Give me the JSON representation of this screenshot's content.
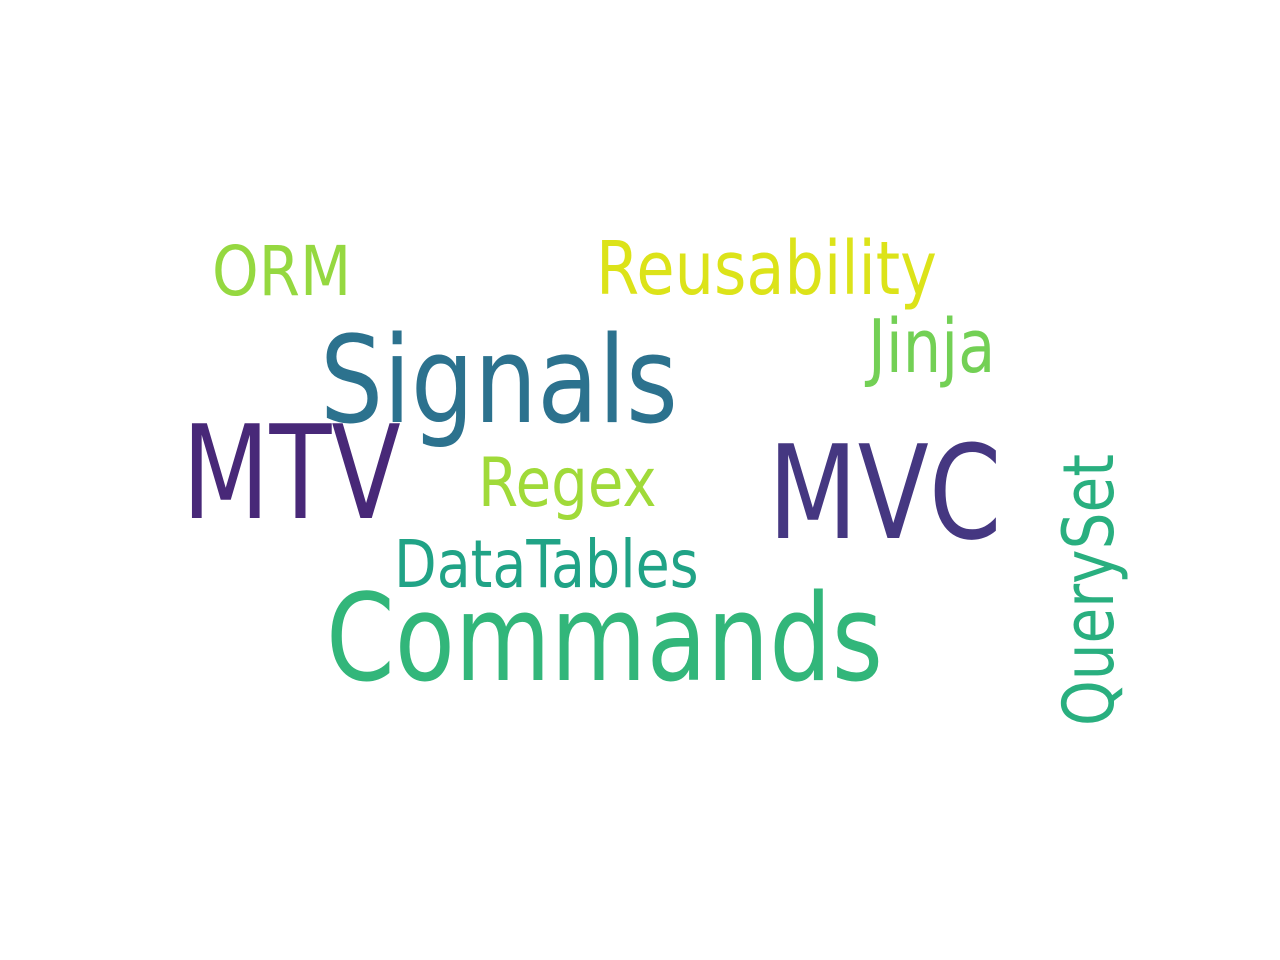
{
  "words": {
    "orm": {
      "text": "ORM",
      "color": "#95d840"
    },
    "reusability": {
      "text": "Reusability",
      "color": "#dce319"
    },
    "signals": {
      "text": "Signals",
      "color": "#2c728e"
    },
    "jinja": {
      "text": "Jinja",
      "color": "#73d055"
    },
    "mtv": {
      "text": "MTV",
      "color": "#482878"
    },
    "regex": {
      "text": "Regex",
      "color": "#a0da39"
    },
    "mvc": {
      "text": "MVC",
      "color": "#453781"
    },
    "datatables": {
      "text": "DataTables",
      "color": "#20a386"
    },
    "commands": {
      "text": "Commands",
      "color": "#32b67a"
    },
    "queryset": {
      "text": "QuerySet",
      "color": "#29af7f"
    }
  }
}
